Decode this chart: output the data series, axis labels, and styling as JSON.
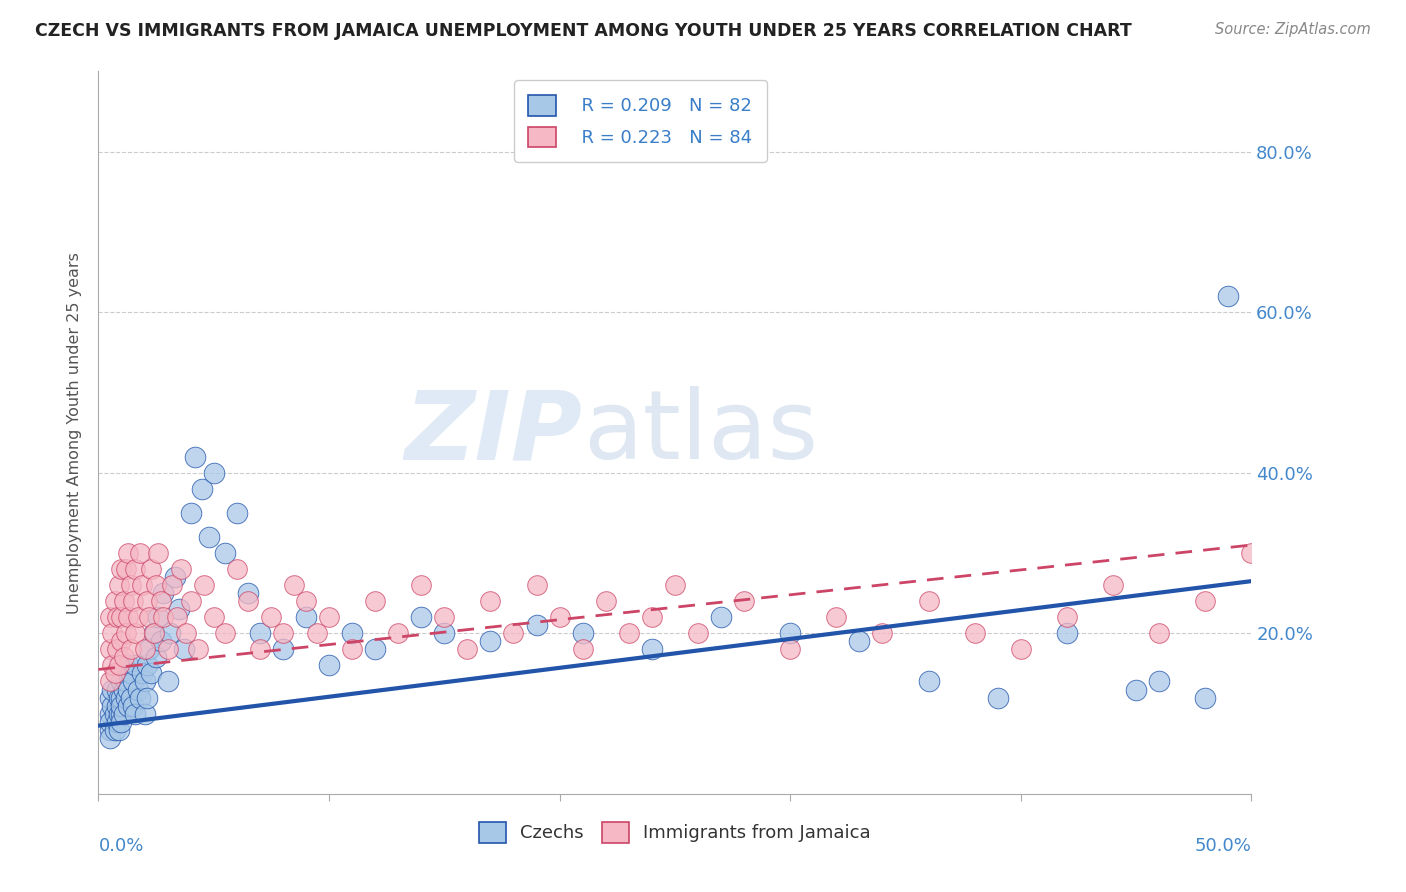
{
  "title": "CZECH VS IMMIGRANTS FROM JAMAICA UNEMPLOYMENT AMONG YOUTH UNDER 25 YEARS CORRELATION CHART",
  "source": "Source: ZipAtlas.com",
  "ylabel": "Unemployment Among Youth under 25 years",
  "ytick_labels": [
    "",
    "20.0%",
    "40.0%",
    "60.0%",
    "80.0%"
  ],
  "ytick_values": [
    0.0,
    0.2,
    0.4,
    0.6,
    0.8
  ],
  "xlim": [
    0.0,
    0.5
  ],
  "ylim": [
    0.0,
    0.9
  ],
  "legend_r1": "R = 0.209",
  "legend_n1": "N = 82",
  "legend_r2": "R = 0.223",
  "legend_n2": "N = 84",
  "color_czech": "#a8c8e8",
  "color_jamaica": "#f5b8c4",
  "color_line_czech": "#2255aa",
  "color_line_jamaica": "#cc4466",
  "czech_x": [
    0.005,
    0.005,
    0.005,
    0.005,
    0.005,
    0.006,
    0.006,
    0.007,
    0.007,
    0.008,
    0.008,
    0.008,
    0.009,
    0.009,
    0.009,
    0.01,
    0.01,
    0.01,
    0.01,
    0.01,
    0.011,
    0.011,
    0.012,
    0.012,
    0.013,
    0.013,
    0.013,
    0.014,
    0.014,
    0.015,
    0.015,
    0.016,
    0.016,
    0.017,
    0.018,
    0.019,
    0.02,
    0.02,
    0.021,
    0.021,
    0.022,
    0.023,
    0.024,
    0.025,
    0.026,
    0.027,
    0.028,
    0.03,
    0.031,
    0.033,
    0.035,
    0.037,
    0.04,
    0.042,
    0.045,
    0.048,
    0.05,
    0.055,
    0.06,
    0.065,
    0.07,
    0.08,
    0.09,
    0.1,
    0.11,
    0.12,
    0.14,
    0.15,
    0.17,
    0.19,
    0.21,
    0.24,
    0.27,
    0.3,
    0.33,
    0.36,
    0.39,
    0.42,
    0.45,
    0.46,
    0.48,
    0.49
  ],
  "czech_y": [
    0.1,
    0.08,
    0.12,
    0.09,
    0.07,
    0.11,
    0.13,
    0.08,
    0.1,
    0.09,
    0.11,
    0.13,
    0.1,
    0.12,
    0.08,
    0.1,
    0.09,
    0.12,
    0.14,
    0.11,
    0.13,
    0.1,
    0.12,
    0.14,
    0.11,
    0.13,
    0.16,
    0.12,
    0.15,
    0.11,
    0.14,
    0.1,
    0.16,
    0.13,
    0.12,
    0.15,
    0.1,
    0.14,
    0.16,
    0.12,
    0.18,
    0.15,
    0.2,
    0.17,
    0.22,
    0.19,
    0.25,
    0.14,
    0.2,
    0.27,
    0.23,
    0.18,
    0.35,
    0.42,
    0.38,
    0.32,
    0.4,
    0.3,
    0.35,
    0.25,
    0.2,
    0.18,
    0.22,
    0.16,
    0.2,
    0.18,
    0.22,
    0.2,
    0.19,
    0.21,
    0.2,
    0.18,
    0.22,
    0.2,
    0.19,
    0.14,
    0.12,
    0.2,
    0.13,
    0.14,
    0.12,
    0.62
  ],
  "jamaica_x": [
    0.005,
    0.005,
    0.005,
    0.006,
    0.006,
    0.007,
    0.007,
    0.008,
    0.008,
    0.009,
    0.009,
    0.01,
    0.01,
    0.01,
    0.011,
    0.011,
    0.012,
    0.012,
    0.013,
    0.013,
    0.014,
    0.014,
    0.015,
    0.016,
    0.016,
    0.017,
    0.018,
    0.019,
    0.02,
    0.021,
    0.022,
    0.023,
    0.024,
    0.025,
    0.026,
    0.027,
    0.028,
    0.03,
    0.032,
    0.034,
    0.036,
    0.038,
    0.04,
    0.043,
    0.046,
    0.05,
    0.055,
    0.06,
    0.065,
    0.07,
    0.075,
    0.08,
    0.085,
    0.09,
    0.095,
    0.1,
    0.11,
    0.12,
    0.13,
    0.14,
    0.15,
    0.16,
    0.17,
    0.18,
    0.19,
    0.2,
    0.21,
    0.22,
    0.23,
    0.24,
    0.25,
    0.26,
    0.28,
    0.3,
    0.32,
    0.34,
    0.36,
    0.38,
    0.4,
    0.42,
    0.44,
    0.46,
    0.48,
    0.5
  ],
  "jamaica_y": [
    0.14,
    0.18,
    0.22,
    0.16,
    0.2,
    0.15,
    0.24,
    0.18,
    0.22,
    0.16,
    0.26,
    0.19,
    0.22,
    0.28,
    0.17,
    0.24,
    0.2,
    0.28,
    0.22,
    0.3,
    0.18,
    0.26,
    0.24,
    0.2,
    0.28,
    0.22,
    0.3,
    0.26,
    0.18,
    0.24,
    0.22,
    0.28,
    0.2,
    0.26,
    0.3,
    0.24,
    0.22,
    0.18,
    0.26,
    0.22,
    0.28,
    0.2,
    0.24,
    0.18,
    0.26,
    0.22,
    0.2,
    0.28,
    0.24,
    0.18,
    0.22,
    0.2,
    0.26,
    0.24,
    0.2,
    0.22,
    0.18,
    0.24,
    0.2,
    0.26,
    0.22,
    0.18,
    0.24,
    0.2,
    0.26,
    0.22,
    0.18,
    0.24,
    0.2,
    0.22,
    0.26,
    0.2,
    0.24,
    0.18,
    0.22,
    0.2,
    0.24,
    0.2,
    0.18,
    0.22,
    0.26,
    0.2,
    0.24,
    0.3
  ],
  "trend_czech_x0": 0.0,
  "trend_czech_x1": 0.5,
  "trend_czech_y0": 0.085,
  "trend_czech_y1": 0.265,
  "trend_jamaica_x0": 0.0,
  "trend_jamaica_x1": 0.5,
  "trend_jamaica_y0": 0.155,
  "trend_jamaica_y1": 0.31
}
